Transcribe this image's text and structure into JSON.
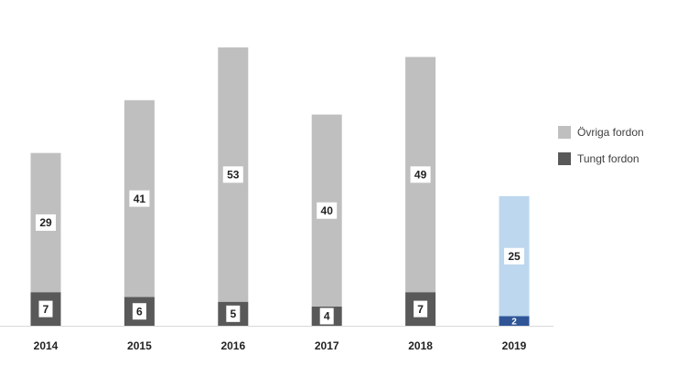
{
  "chart_data": {
    "type": "stacked_bar",
    "categories": [
      "2014",
      "2015",
      "2016",
      "2017",
      "2018",
      "2019"
    ],
    "series": [
      {
        "name": "Tungt fordon",
        "color": "#595959",
        "colors": [
          "#595959",
          "#595959",
          "#595959",
          "#595959",
          "#595959",
          "#2f5597"
        ],
        "values": [
          7,
          6,
          5,
          4,
          7,
          2
        ]
      },
      {
        "name": "Övriga fordon",
        "color": "#bfbfbf",
        "colors": [
          "#bfbfbf",
          "#bfbfbf",
          "#bfbfbf",
          "#bfbfbf",
          "#bfbfbf",
          "#bdd7ee"
        ],
        "values": [
          29,
          41,
          53,
          40,
          49,
          25
        ]
      }
    ],
    "legend": "right"
  }
}
